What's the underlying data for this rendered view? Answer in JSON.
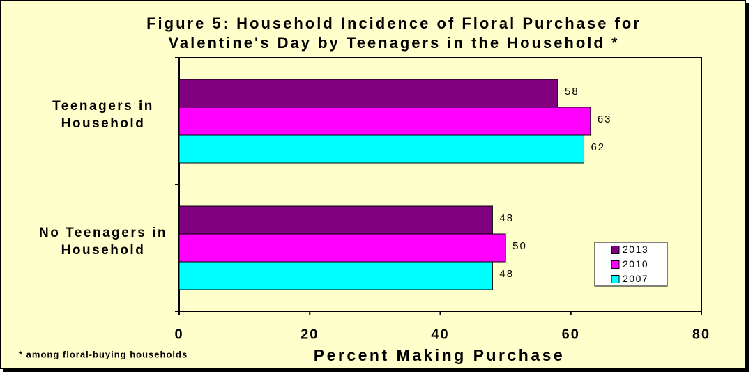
{
  "chart_data": {
    "type": "hbar",
    "title": [
      "Figure 5: Household Incidence of Floral Purchase for",
      "Valentine's Day by Teenagers in the Household *"
    ],
    "categories": [
      "Teenagers in Household",
      "No Teenagers in Household"
    ],
    "series": [
      {
        "name": "2013",
        "color": "#800080",
        "values": [
          58,
          48
        ]
      },
      {
        "name": "2010",
        "color": "#FF00FF",
        "values": [
          63,
          50
        ]
      },
      {
        "name": "2007",
        "color": "#00FFFF",
        "values": [
          62,
          48
        ]
      }
    ],
    "xlim": [
      0,
      80
    ],
    "xticks": [
      0,
      20,
      40,
      60,
      80
    ],
    "grid": false,
    "xlabel": "Percent Making Purchase",
    "footnote": "* among floral-buying households",
    "legend": "lower-right"
  }
}
